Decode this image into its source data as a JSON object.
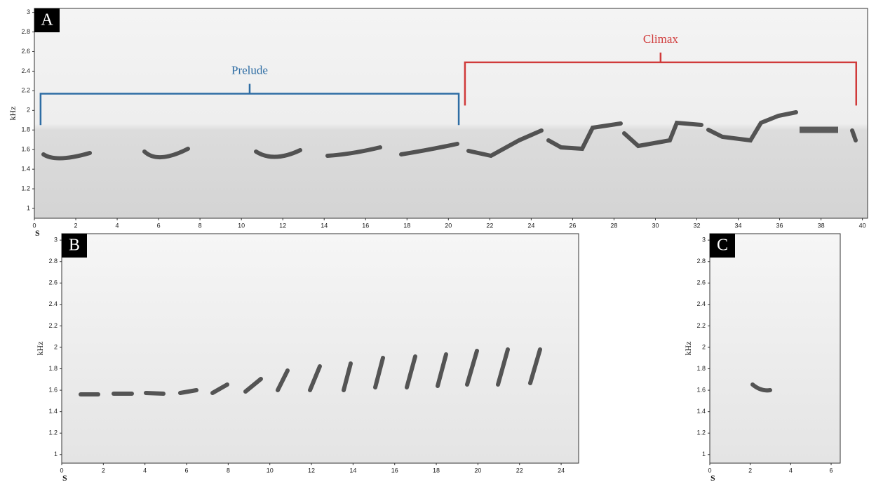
{
  "chart_data": [
    {
      "type": "spectrogram",
      "panel_label": "A",
      "xlabel": "S",
      "ylabel": "kHz",
      "xlim": [
        0,
        40.25
      ],
      "ylim": [
        0.9,
        3.04
      ],
      "xticks": [
        0,
        2,
        4,
        6,
        8,
        10,
        12,
        14,
        16,
        18,
        20,
        22,
        24,
        26,
        28,
        30,
        32,
        34,
        36,
        38,
        40
      ],
      "yticks": [
        1,
        1.2,
        1.4,
        1.6,
        1.8,
        2,
        2.2,
        2.4,
        2.6,
        2.8,
        3
      ],
      "annotations": [
        {
          "text": "Prelude",
          "x": [
            0.3,
            20.5
          ],
          "y": 2.17,
          "foot": 1.85,
          "color": "#2e6da4"
        },
        {
          "text": "Climax",
          "x": [
            20.8,
            39.7
          ],
          "y": 2.49,
          "foot": 2.05,
          "color": "#d03a3a"
        }
      ]
    },
    {
      "type": "spectrogram",
      "panel_label": "B",
      "xlabel": "S",
      "ylabel": "kHz",
      "xlim": [
        0,
        24.84
      ],
      "ylim": [
        0.92,
        3.06
      ],
      "xticks": [
        0,
        2,
        4,
        6,
        8,
        10,
        12,
        14,
        16,
        18,
        20,
        22,
        24
      ],
      "yticks": [
        1,
        1.2,
        1.4,
        1.6,
        1.8,
        2,
        2.2,
        2.4,
        2.6,
        2.8,
        3
      ]
    },
    {
      "type": "spectrogram",
      "panel_label": "C",
      "xlabel": "S",
      "ylabel": "kHz",
      "xlim": [
        0,
        6.45
      ],
      "ylim": [
        0.92,
        3.06
      ],
      "xticks": [
        0,
        2,
        4,
        6
      ],
      "yticks": [
        1,
        1.2,
        1.4,
        1.6,
        1.8,
        2,
        2.2,
        2.4,
        2.6,
        2.8,
        3
      ]
    }
  ]
}
